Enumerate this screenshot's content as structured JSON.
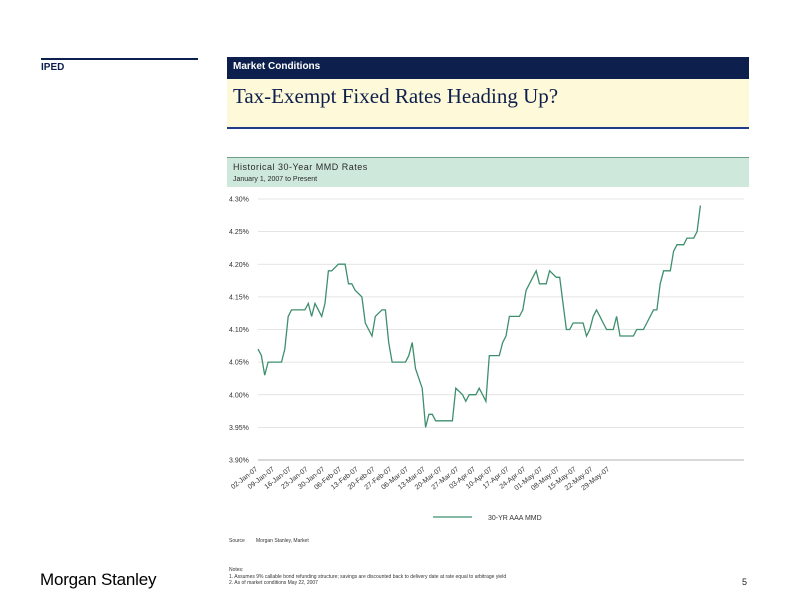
{
  "header": {
    "left_label": "IPED",
    "section": "Market Conditions",
    "title": "Tax-Exempt Fixed Rates Heading Up?"
  },
  "chart_header": {
    "title": "Historical 30-Year MMD Rates",
    "subtitle": "January 1, 2007 to Present"
  },
  "chart_data": {
    "type": "line",
    "title": "Historical 30-Year MMD Rates",
    "subtitle": "January 1, 2007 to Present",
    "xlabel": "",
    "ylabel": "",
    "ylim": [
      3.9,
      4.3
    ],
    "yticks": [
      {
        "value": 4.3,
        "label": "4.30%"
      },
      {
        "value": 4.25,
        "label": "4.25%"
      },
      {
        "value": 4.2,
        "label": "4.20%"
      },
      {
        "value": 4.15,
        "label": "4.15%"
      },
      {
        "value": 4.1,
        "label": "4.10%"
      },
      {
        "value": 4.05,
        "label": "4.05%"
      },
      {
        "value": 4.0,
        "label": "4.00%"
      },
      {
        "value": 3.95,
        "label": "3.95%"
      },
      {
        "value": 3.9,
        "label": "3.90%"
      }
    ],
    "xlim": [
      0,
      145
    ],
    "xticks": [
      {
        "label": "02-Jan-07",
        "index": 0
      },
      {
        "label": "09-Jan-07",
        "index": 5
      },
      {
        "label": "16-Jan-07",
        "index": 10
      },
      {
        "label": "23-Jan-07",
        "index": 15
      },
      {
        "label": "30-Jan-07",
        "index": 20
      },
      {
        "label": "06-Feb-07",
        "index": 25
      },
      {
        "label": "13-Feb-07",
        "index": 30
      },
      {
        "label": "20-Feb-07",
        "index": 35
      },
      {
        "label": "27-Feb-07",
        "index": 40
      },
      {
        "label": "06-Mar-07",
        "index": 45
      },
      {
        "label": "13-Mar-07",
        "index": 50
      },
      {
        "label": "20-Mar-07",
        "index": 55
      },
      {
        "label": "27-Mar-07",
        "index": 60
      },
      {
        "label": "03-Apr-07",
        "index": 65
      },
      {
        "label": "10-Apr-07",
        "index": 70
      },
      {
        "label": "17-Apr-07",
        "index": 75
      },
      {
        "label": "24-Apr-07",
        "index": 80
      },
      {
        "label": "01-May-07",
        "index": 85
      },
      {
        "label": "08-May-07",
        "index": 90
      },
      {
        "label": "15-May-07",
        "index": 95
      },
      {
        "label": "22-May-07",
        "index": 100
      },
      {
        "label": "29-May-07",
        "index": 105
      }
    ],
    "legend": {
      "placement": "bottom",
      "entries": [
        "30-YR AAA MMD"
      ]
    },
    "grid": true,
    "series": [
      {
        "name": "30-YR AAA MMD",
        "color": "#3f8f6e",
        "points": [
          [
            0,
            4.07
          ],
          [
            1,
            4.06
          ],
          [
            2,
            4.03
          ],
          [
            3,
            4.05
          ],
          [
            5,
            4.05
          ],
          [
            7,
            4.05
          ],
          [
            8,
            4.07
          ],
          [
            9,
            4.12
          ],
          [
            10,
            4.13
          ],
          [
            14,
            4.13
          ],
          [
            15,
            4.14
          ],
          [
            16,
            4.12
          ],
          [
            17,
            4.14
          ],
          [
            19,
            4.12
          ],
          [
            20,
            4.14
          ],
          [
            21,
            4.19
          ],
          [
            22,
            4.19
          ],
          [
            24,
            4.2
          ],
          [
            26,
            4.2
          ],
          [
            27,
            4.17
          ],
          [
            28,
            4.17
          ],
          [
            29,
            4.16
          ],
          [
            31,
            4.15
          ],
          [
            32,
            4.11
          ],
          [
            33,
            4.1
          ],
          [
            34,
            4.09
          ],
          [
            35,
            4.12
          ],
          [
            37,
            4.13
          ],
          [
            38,
            4.13
          ],
          [
            39,
            4.08
          ],
          [
            40,
            4.05
          ],
          [
            44,
            4.05
          ],
          [
            45,
            4.06
          ],
          [
            46,
            4.08
          ],
          [
            47,
            4.04
          ],
          [
            49,
            4.01
          ],
          [
            50,
            3.95
          ],
          [
            51,
            3.97
          ],
          [
            52,
            3.97
          ],
          [
            53,
            3.96
          ],
          [
            56,
            3.96
          ],
          [
            58,
            3.96
          ],
          [
            59,
            4.01
          ],
          [
            61,
            4.0
          ],
          [
            62,
            3.99
          ],
          [
            63,
            4.0
          ],
          [
            65,
            4.0
          ],
          [
            66,
            4.01
          ],
          [
            67,
            4.0
          ],
          [
            68,
            3.99
          ],
          [
            69,
            4.06
          ],
          [
            70,
            4.06
          ],
          [
            72,
            4.06
          ],
          [
            73,
            4.08
          ],
          [
            74,
            4.09
          ],
          [
            75,
            4.12
          ],
          [
            78,
            4.12
          ],
          [
            79,
            4.13
          ],
          [
            80,
            4.16
          ],
          [
            82,
            4.18
          ],
          [
            83,
            4.19
          ],
          [
            84,
            4.17
          ],
          [
            86,
            4.17
          ],
          [
            87,
            4.19
          ],
          [
            89,
            4.18
          ],
          [
            90,
            4.18
          ],
          [
            91,
            4.14
          ],
          [
            92,
            4.1
          ],
          [
            93,
            4.1
          ],
          [
            94,
            4.11
          ],
          [
            97,
            4.11
          ],
          [
            98,
            4.09
          ],
          [
            99,
            4.1
          ],
          [
            100,
            4.12
          ],
          [
            101,
            4.13
          ],
          [
            102,
            4.12
          ],
          [
            103,
            4.11
          ],
          [
            104,
            4.1
          ],
          [
            106,
            4.1
          ],
          [
            107,
            4.12
          ],
          [
            108,
            4.09
          ],
          [
            112,
            4.09
          ],
          [
            113,
            4.1
          ],
          [
            115,
            4.1
          ],
          [
            116,
            4.11
          ],
          [
            118,
            4.13
          ],
          [
            119,
            4.13
          ],
          [
            120,
            4.17
          ],
          [
            121,
            4.19
          ],
          [
            123,
            4.19
          ],
          [
            124,
            4.22
          ],
          [
            125,
            4.23
          ],
          [
            127,
            4.23
          ],
          [
            128,
            4.24
          ],
          [
            130,
            4.24
          ],
          [
            131,
            4.25
          ],
          [
            132,
            4.29
          ]
        ]
      }
    ]
  },
  "source": {
    "label": "Source",
    "text": "Morgan Stanley, Market"
  },
  "notes": {
    "heading": "Notes:",
    "items": [
      "1. Assumes 9% callable bond refunding structure; savings are discounted back to delivery date at rate equal to arbitrage yield",
      "2. As of market conditions May 22, 2007"
    ]
  },
  "footer": {
    "brand": "Morgan Stanley",
    "page_number": "5"
  }
}
